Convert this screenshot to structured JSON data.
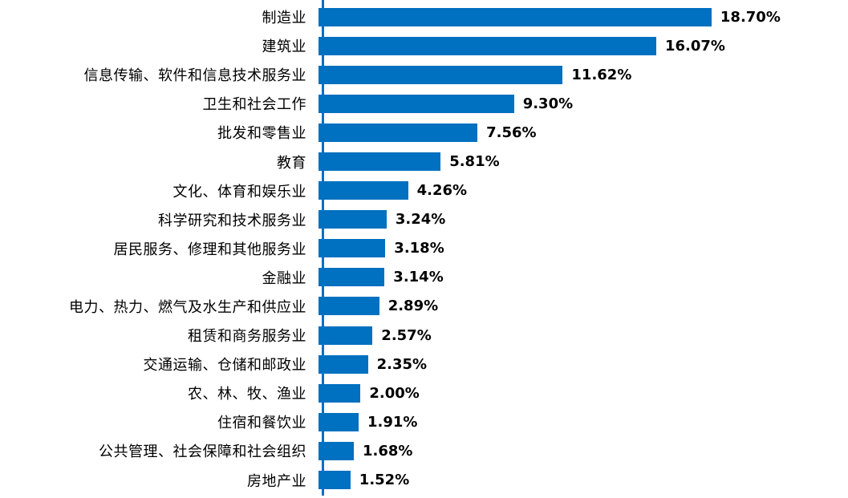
{
  "chart_data": {
    "type": "bar",
    "orientation": "horizontal",
    "title": "",
    "xlabel": "",
    "ylabel": "",
    "xlim": [
      0,
      20
    ],
    "grid": false,
    "legend": null,
    "bar_color": "#0070C0",
    "axis_line_color": "#0070C0",
    "categories": [
      "制造业",
      "建筑业",
      "信息传输、软件和信息技术服务业",
      "卫生和社会工作",
      "批发和零售业",
      "教育",
      "文化、体育和娱乐业",
      "科学研究和技术服务业",
      "居民服务、修理和其他服务业",
      "金融业",
      "电力、热力、燃气及水生产和供应业",
      "租赁和商务服务业",
      "交通运输、仓储和邮政业",
      "农、林、牧、渔业",
      "住宿和餐饮业",
      "公共管理、社会保障和社会组织",
      "房地产业"
    ],
    "values": [
      18.7,
      16.07,
      11.62,
      9.3,
      7.56,
      5.81,
      4.26,
      3.24,
      3.18,
      3.14,
      2.89,
      2.57,
      2.35,
      2.0,
      1.91,
      1.68,
      1.52
    ],
    "value_labels": [
      "18.70%",
      "16.07%",
      "11.62%",
      "9.30%",
      "7.56%",
      "5.81%",
      "4.26%",
      "3.24%",
      "3.18%",
      "3.14%",
      "2.89%",
      "2.57%",
      "2.35%",
      "2.00%",
      "1.91%",
      "1.68%",
      "1.52%"
    ]
  }
}
